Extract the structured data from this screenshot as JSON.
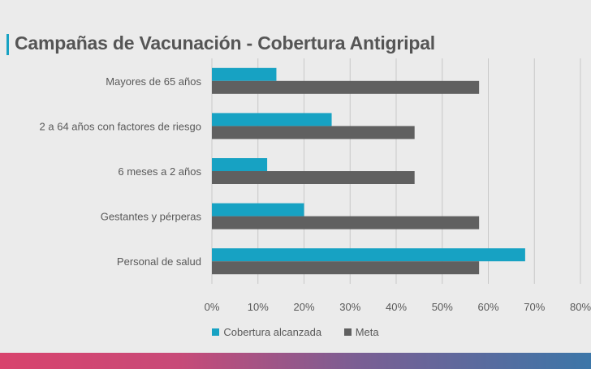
{
  "title": "Campañas de Vacunación - Cobertura Antigripal",
  "colors": {
    "cobertura": "#17a2c3",
    "meta": "#606060",
    "grid": "#c8c8c8",
    "text": "#595959"
  },
  "chart_data": {
    "type": "bar",
    "orientation": "horizontal",
    "categories": [
      "Mayores de 65 años",
      "2 a 64 años con factores de riesgo",
      "6 meses a 2 años",
      "Gestantes y pérperas",
      "Personal de salud"
    ],
    "series": [
      {
        "name": "Cobertura alcanzada",
        "values": [
          14,
          26,
          12,
          20,
          68
        ]
      },
      {
        "name": "Meta",
        "values": [
          58,
          44,
          44,
          58,
          58
        ]
      }
    ],
    "xlim": [
      0,
      80
    ],
    "ticks": [
      "0%",
      "10%",
      "20%",
      "30%",
      "40%",
      "50%",
      "60%",
      "70%",
      "80%"
    ],
    "grid": true,
    "legend": "bottom"
  }
}
